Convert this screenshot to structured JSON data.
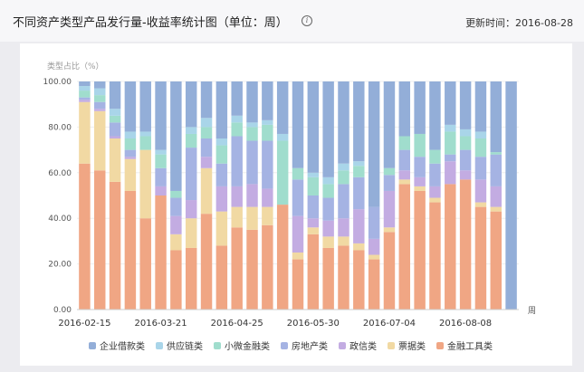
{
  "header": {
    "title": "不同资产类型产品发行量-收益率统计图（单位：周）",
    "updated": "更新时间：2016-08-28"
  },
  "chart_data": {
    "type": "bar",
    "stacked": true,
    "ylabel": "类型占比（%）",
    "xunit": "周",
    "ylim": [
      0,
      100
    ],
    "yticks": [
      "0.00",
      "20.00",
      "40.00",
      "60.00",
      "80.00",
      "100.00"
    ],
    "xticks": [
      {
        "index": 0,
        "label": "2016-02-15"
      },
      {
        "index": 5,
        "label": "2016-03-21"
      },
      {
        "index": 10,
        "label": "2016-04-25"
      },
      {
        "index": 15,
        "label": "2016-05-30"
      },
      {
        "index": 20,
        "label": "2016-07-04"
      },
      {
        "index": 25,
        "label": "2016-08-08"
      }
    ],
    "categories_count": 29,
    "series": [
      {
        "name": "金融工具类",
        "color": "#f0a684",
        "values": [
          64,
          61,
          56,
          52,
          40,
          50,
          26,
          27,
          42,
          28,
          36,
          35,
          37,
          46,
          22,
          33,
          27,
          28,
          26,
          22,
          34,
          55,
          52,
          47,
          55,
          57,
          45,
          43,
          0
        ]
      },
      {
        "name": "票据类",
        "color": "#f1d9a3",
        "values": [
          27,
          26,
          19,
          14,
          30,
          0,
          7,
          13,
          20,
          15,
          9,
          10,
          8,
          0,
          3,
          3,
          5,
          4,
          3,
          2,
          2,
          2,
          2,
          2,
          0,
          0,
          2,
          2,
          0
        ]
      },
      {
        "name": "政信类",
        "color": "#c3ace2",
        "values": [
          1,
          1,
          1,
          1,
          0,
          4,
          8,
          8,
          5,
          11,
          9,
          10,
          8,
          0,
          16,
          4,
          7,
          8,
          15,
          7,
          16,
          4,
          4,
          5,
          10,
          4,
          10,
          9,
          0
        ]
      },
      {
        "name": "房地产类",
        "color": "#a5b3e3",
        "values": [
          1,
          3,
          6,
          3,
          0,
          8,
          8,
          23,
          8,
          10,
          22,
          19,
          21,
          0,
          16,
          10,
          10,
          15,
          14,
          14,
          7,
          9,
          9,
          10,
          3,
          9,
          10,
          14,
          0
        ]
      },
      {
        "name": "小微金融类",
        "color": "#a0ddcd",
        "values": [
          3,
          3,
          3,
          5,
          6,
          6,
          3,
          6,
          5,
          8,
          6,
          6,
          7,
          28,
          5,
          8,
          6,
          6,
          5,
          0,
          3,
          6,
          10,
          6,
          10,
          6,
          8,
          1,
          0
        ]
      },
      {
        "name": "供应链类",
        "color": "#a9d5e9",
        "values": [
          2,
          3,
          3,
          3,
          2,
          2,
          0,
          3,
          4,
          3,
          3,
          2,
          2,
          3,
          0,
          2,
          3,
          3,
          2,
          0,
          0,
          0,
          0,
          0,
          3,
          3,
          3,
          0,
          0
        ]
      },
      {
        "name": "企业借款类",
        "color": "#93aed8",
        "values": [
          2,
          3,
          12,
          22,
          22,
          30,
          48,
          20,
          16,
          25,
          15,
          18,
          17,
          23,
          38,
          40,
          42,
          36,
          35,
          55,
          38,
          24,
          23,
          30,
          19,
          21,
          22,
          31,
          100
        ]
      }
    ],
    "legend_order": [
      "企业借款类",
      "供应链类",
      "小微金融类",
      "房地产类",
      "政信类",
      "票据类",
      "金融工具类"
    ],
    "legend_position": "bottom",
    "grid": true
  }
}
